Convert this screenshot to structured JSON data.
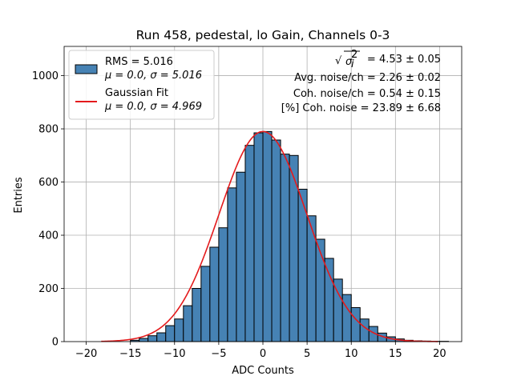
{
  "chart_data": {
    "type": "bar",
    "title": "Run 458, pedestal, lo Gain, Channels 0-3",
    "xlabel": "ADC Counts",
    "ylabel": "Entries",
    "xlim": [
      -22.5,
      22.5
    ],
    "ylim": [
      0,
      1110
    ],
    "xticks": [
      -20,
      -15,
      -10,
      -5,
      0,
      5,
      10,
      15,
      20
    ],
    "yticks": [
      0,
      200,
      400,
      600,
      800,
      1000
    ],
    "grid": true,
    "bin_width": 1,
    "histogram": {
      "bin_left_edges": [
        -15,
        -14,
        -13,
        -12,
        -11,
        -10,
        -9,
        -8,
        -7,
        -6,
        -5,
        -4,
        -3,
        -2,
        -1,
        0,
        1,
        2,
        3,
        4,
        5,
        6,
        7,
        8,
        9,
        10,
        11,
        12,
        13,
        14,
        15,
        16,
        17,
        18,
        19,
        20
      ],
      "values": [
        5,
        12,
        22,
        33,
        60,
        85,
        135,
        200,
        283,
        355,
        428,
        578,
        637,
        738,
        785,
        790,
        758,
        705,
        700,
        573,
        473,
        385,
        313,
        235,
        177,
        128,
        85,
        57,
        32,
        18,
        10,
        5,
        3,
        2,
        1,
        1
      ],
      "face_color": "#4682b4",
      "edge_color": "#000000"
    },
    "fit": {
      "mu": 0.0,
      "sigma": 4.969,
      "amplitude": 790,
      "x_range": [
        -18.3,
        19.8
      ],
      "color": "#e41a1c"
    },
    "legend": {
      "placement": "top-left",
      "entries": [
        {
          "line1": "RMS = 5.016",
          "line2": "μ = 0.0, σ = 5.016",
          "marker": "patch"
        },
        {
          "line1": "Gaussian Fit",
          "line2": "μ = 0.0, σ = 4.969",
          "marker": "line"
        }
      ]
    },
    "annotations": {
      "sigma_value": "= 4.53 ± 0.05",
      "avg_noise": "Avg. noise/ch = 2.26 ± 0.02",
      "coh_noise": "Coh. noise/ch = 0.54 ± 0.15",
      "pct_coh_noise": "[%] Coh. noise = 23.89 ± 6.68"
    }
  }
}
